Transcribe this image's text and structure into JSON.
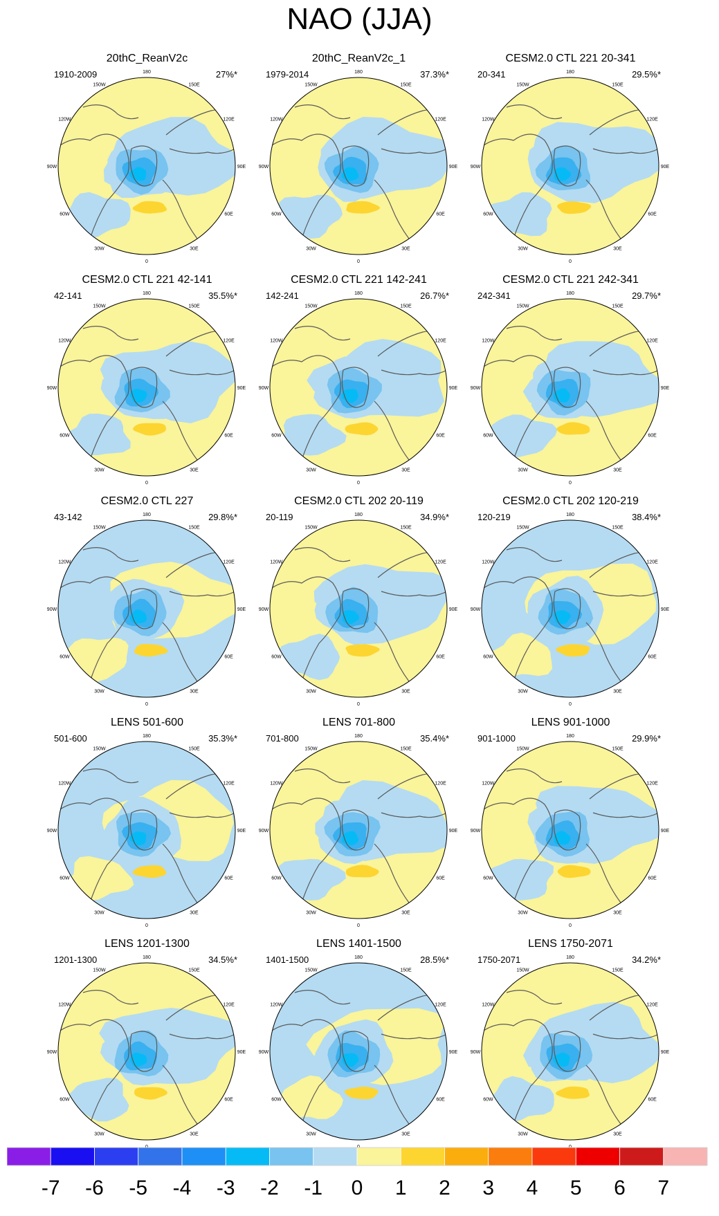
{
  "title": "NAO (JJA)",
  "colors": {
    "coast": "#5a5a5a",
    "pos_weak": "#faf49a",
    "pos_1": "#fdd531",
    "neg_weak": "#b4dbf2",
    "neg_1": "#78c3ef",
    "neg_2": "#39b0ef",
    "neg_3": "#06bbf5"
  },
  "lon_labels": [
    "180",
    "150E",
    "120E",
    "90E",
    "60E",
    "30E",
    "0",
    "30W",
    "60W",
    "90W",
    "120W",
    "150W"
  ],
  "panels": [
    {
      "title": "20thC_ReanV2c",
      "period": "1910-2009",
      "percent": "27%*",
      "bg": "pos"
    },
    {
      "title": "20thC_ReanV2c_1",
      "period": "1979-2014",
      "percent": "37.3%*",
      "bg": "pos"
    },
    {
      "title": "CESM2.0 CTL 221 20-341",
      "period": "20-341",
      "percent": "29.5%*",
      "bg": "pos"
    },
    {
      "title": "CESM2.0 CTL 221 42-141",
      "period": "42-141",
      "percent": "35.5%*",
      "bg": "pos"
    },
    {
      "title": "CESM2.0 CTL 221 142-241",
      "period": "142-241",
      "percent": "26.7%*",
      "bg": "pos"
    },
    {
      "title": "CESM2.0 CTL 221 242-341",
      "period": "242-341",
      "percent": "29.7%*",
      "bg": "pos"
    },
    {
      "title": "CESM2.0 CTL 227",
      "period": "43-142",
      "percent": "29.8%*",
      "bg": "neg"
    },
    {
      "title": "CESM2.0 CTL 202 20-119",
      "period": "20-119",
      "percent": "34.9%*",
      "bg": "pos"
    },
    {
      "title": "CESM2.0 CTL 202 120-219",
      "period": "120-219",
      "percent": "38.4%*",
      "bg": "neg"
    },
    {
      "title": "LENS 501-600",
      "period": "501-600",
      "percent": "35.3%*",
      "bg": "neg"
    },
    {
      "title": "LENS 701-800",
      "period": "701-800",
      "percent": "35.4%*",
      "bg": "pos"
    },
    {
      "title": "LENS 901-1000",
      "period": "901-1000",
      "percent": "29.9%*",
      "bg": "pos"
    },
    {
      "title": "LENS 1201-1300",
      "period": "1201-1300",
      "percent": "34.5%*",
      "bg": "pos"
    },
    {
      "title": "LENS 1401-1500",
      "period": "1401-1500",
      "percent": "28.5%*",
      "bg": "neg"
    },
    {
      "title": "LENS 1750-2071",
      "period": "1750-2071",
      "percent": "34.2%*",
      "bg": "pos"
    }
  ],
  "colorbar": {
    "labels": [
      "-7",
      "-6",
      "-5",
      "-4",
      "-3",
      "-2",
      "-1",
      "0",
      "1",
      "2",
      "3",
      "4",
      "5",
      "6",
      "7"
    ],
    "colors": [
      "#8a1ee6",
      "#1a0ff0",
      "#2c3ff0",
      "#3373ea",
      "#1e8ff5",
      "#06bbf5",
      "#78c3ef",
      "#b4dbf2",
      "#faf49a",
      "#fdd531",
      "#fbad0d",
      "#fa7d0d",
      "#fa3a0d",
      "#ee0000",
      "#cd1b1b",
      "#f8b3b3"
    ]
  }
}
